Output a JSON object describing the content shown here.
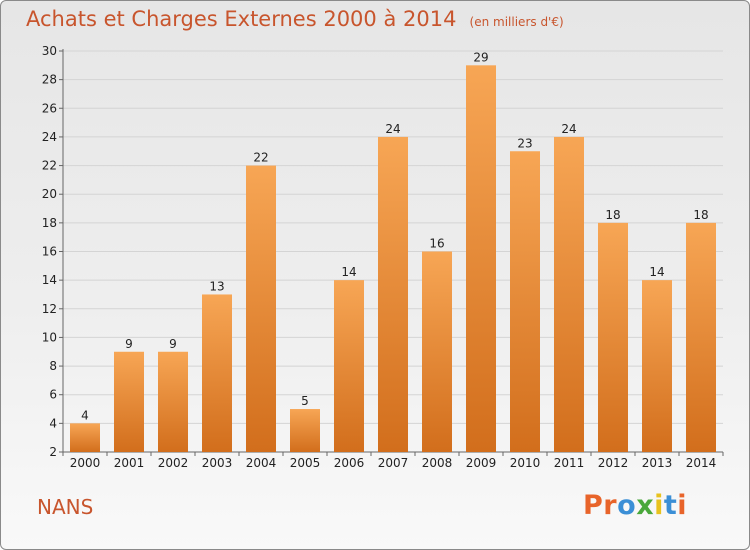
{
  "header": {
    "title": "Achats et Charges Externes 2000 à 2014",
    "subtitle": "(en milliers d'€)"
  },
  "footer": {
    "place": "NANS",
    "brand": "Proxiti"
  },
  "colors": {
    "bar_light": "#f7a655",
    "bar_dark": "#d26e1c",
    "title": "#c8552d",
    "logo_letters": [
      "#e8642a",
      "#e8642a",
      "#3b8fd6",
      "#4aa83b",
      "#e8c21e",
      "#3b8fd6",
      "#e8642a"
    ]
  },
  "chart_data": {
    "type": "bar",
    "title": "Achats et Charges Externes 2000 à 2014",
    "subtitle": "(en milliers d'€)",
    "categories": [
      "2000",
      "2001",
      "2002",
      "2003",
      "2004",
      "2005",
      "2006",
      "2007",
      "2008",
      "2009",
      "2010",
      "2011",
      "2012",
      "2013",
      "2014"
    ],
    "values": [
      4,
      9,
      9,
      13,
      22,
      5,
      14,
      24,
      16,
      29,
      23,
      24,
      18,
      14,
      18
    ],
    "ylim": [
      2,
      30
    ],
    "yticks": [
      2,
      4,
      6,
      8,
      10,
      12,
      14,
      16,
      18,
      20,
      22,
      24,
      26,
      28,
      30
    ],
    "grid": true,
    "data_labels": true
  }
}
